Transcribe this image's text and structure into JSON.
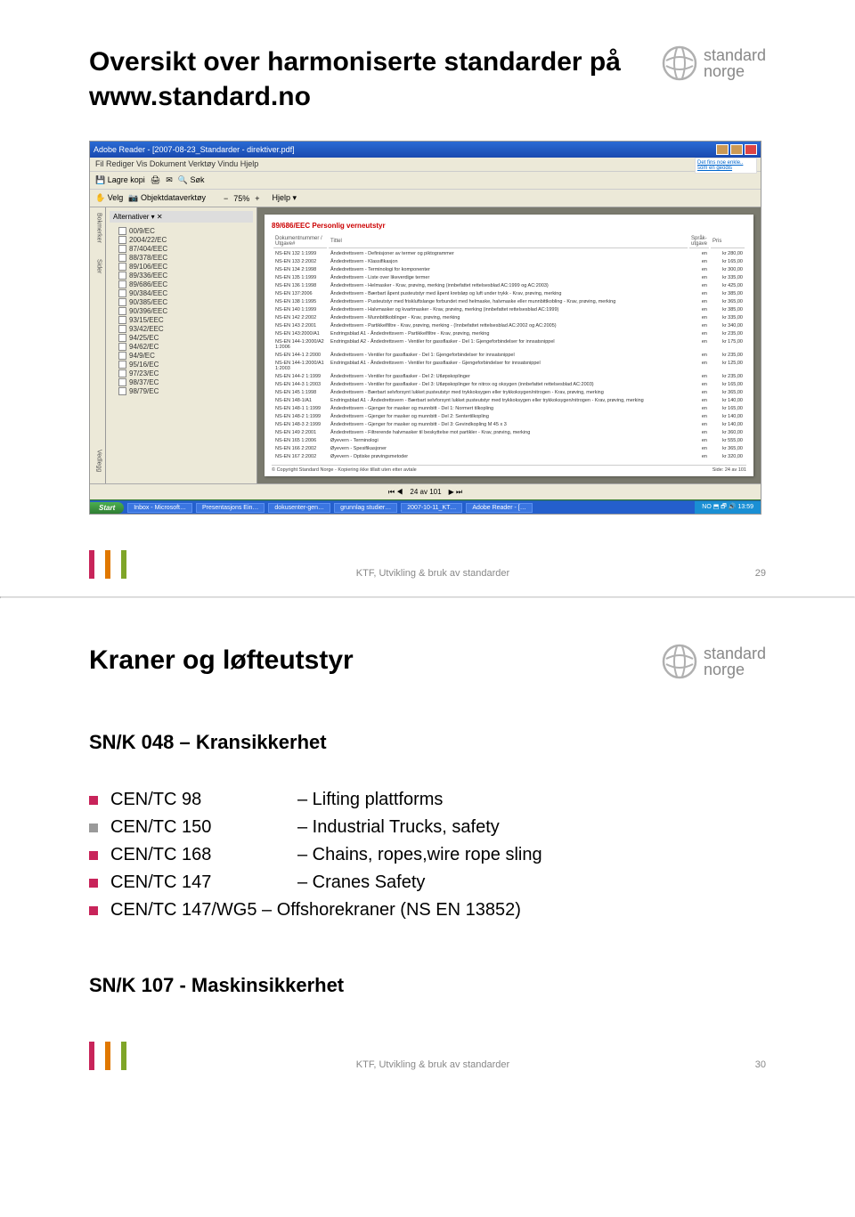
{
  "colors": {
    "bar1": "#c8245a",
    "bar2": "#e07800",
    "bar3": "#7fa528",
    "logo_gray": "#9a9a9a",
    "bullet": "#c8245a",
    "bullet2": "#9a9a9a"
  },
  "slide1": {
    "title": "Oversikt over harmoniserte standarder på www.standard.no",
    "logo": {
      "line1": "standard",
      "line2": "norge"
    },
    "footer": "KTF, Utvikling & bruk av standarder",
    "page": "29",
    "screenshot": {
      "window_title": "Adobe Reader - [2007-08-23_Standarder - direktiver.pdf]",
      "menubar": "Fil  Rediger  Vis  Dokument  Verktøy  Vindu  Hjelp",
      "zoom": "75%",
      "nav_header": "Alternativer ▾    ✕",
      "nav_items": [
        "00/9/EC",
        "2004/22/EC",
        "87/404/EEC",
        "88/378/EEC",
        "89/106/EEC",
        "89/336/EEC",
        "89/686/EEC",
        "90/384/EEC",
        "90/385/EEC",
        "90/396/EEC",
        "93/15/EEC",
        "93/42/EEC",
        "94/25/EC",
        "94/62/EC",
        "94/9/EC",
        "95/16/EC",
        "97/23/EC",
        "98/37/EC",
        "98/79/EC"
      ],
      "doc_heading": "89/686/EEC  Personlig verneutstyr",
      "table_headers": [
        "Dokumentnummer / Utgave#",
        "Tittel",
        "Språk-utgave",
        "Pris"
      ],
      "rows": [
        [
          "NS-EN 132\\n1:1999",
          "Åndedrettsvern - Definisjoner av termer og piktogrammer",
          "en",
          "kr 280,00"
        ],
        [
          "NS-EN 133\\n2:2002",
          "Åndedrettsvern - Klassifikasjon",
          "en",
          "kr 165,00"
        ],
        [
          "NS-EN 134\\n2:1998",
          "Åndedrettsvern - Terminologi for komponenter",
          "en",
          "kr 300,00"
        ],
        [
          "NS-EN 135\\n1:1999",
          "Åndedrettsvern - Liste over likeverdige termer",
          "en",
          "kr 335,00"
        ],
        [
          "NS-EN 136\\n1:1998",
          "Åndedrettsvern - Helmasker - Krav, prøving, merking (innbefattet rettelsesblad AC:1999 og AC:2003)",
          "en",
          "kr 425,00"
        ],
        [
          "NS-EN 137:2006",
          "Åndedrettsvern - Bærbart åpent pusteutstyr med åpent kretsløp og luft under trykk - Krav, prøving, merking",
          "en",
          "kr 385,00"
        ],
        [
          "NS-EN 138\\n1:1995",
          "Åndedrettsvern - Pusteutstyr med friskluftslange forbundet med helmaske, halvmaske eller munnbittkobling - Krav, prøving, merking",
          "en",
          "kr 365,00"
        ],
        [
          "NS-EN 140\\n1:1999",
          "Åndedrettsvern - Halvmasker og kvartmasker - Krav, prøving, merking (innbefattet rettelsesblad AC:1999)",
          "en",
          "kr 385,00"
        ],
        [
          "NS-EN 142\\n2:2002",
          "Åndedrettsvern - Munnbittkoblinger - Krav, prøving, merking",
          "en",
          "kr 335,00"
        ],
        [
          "NS-EN 143\\n2:2001",
          "Åndedrettsvern - Partikkelfiltre - Krav, prøving, merking - (Innbefattet rettelsesblad AC:2002 og AC:2005)",
          "en",
          "kr 340,00"
        ],
        [
          "NS-EN 143:2000/A1",
          "Endringsblad A1 - Åndedrettsvern - Partikkelfiltre - Krav, prøving, merking",
          "en",
          "kr 235,00"
        ],
        [
          "NS-EN 144-1:2000/A2\\n1:2006",
          "Endringsblad A2 - Åndedrettsvern - Ventiler for gassflasker - Del 1: Gjengeforbindelser for innsatsnippel",
          "en",
          "kr 175,00"
        ],
        [
          "NS-EN 144-1\\n2:2000",
          "Åndedrettsvern - Ventiler for gassflasker - Del 1: Gjengeforbindelser for innsatsnippel",
          "en",
          "kr 235,00"
        ],
        [
          "NS-EN 144-1:2000/A1\\n1:2003",
          "Endringsblad A1 - Åndedrettsvern - Ventiler for gassflasker - Gjengeforbindelser for innsatsnippel",
          "en",
          "kr 125,00"
        ],
        [
          "NS-EN 144-2\\n1:1999",
          "Åndedrettsvern - Ventiler for gassflasker - Del 2: Utløpskoplinger",
          "en",
          "kr 235,00"
        ],
        [
          "NS-EN 144-3\\n1:2003",
          "Åndedrettsvern - Ventiler for gassflasker - Del 3: Utløpskoplinger for nitrox og oksygen (innbefattet rettelsesblad AC:2003)",
          "en",
          "kr 165,00"
        ],
        [
          "NS-EN 145\\n1:1998",
          "Åndedrettsvern - Bærbart selvforsynt lukket pusteutstyr med trykkoksygen eller trykkoksygen/nitrogen - Krav, prøving, merking",
          "en",
          "kr 365,00"
        ],
        [
          "NS-EN 148-1/A1",
          "Endringsblad A1 - Åndedrettsvern - Bærbart selvforsynt lukket pusteutstyr med trykkoksygen eller trykkoksygen/nitrogen - Krav, prøving, merking",
          "en",
          "kr 140,00"
        ],
        [
          "NS-EN 148-1\\n1:1999",
          "Åndedrettsvern - Gjenger for masker og munnbitt - Del 1: Normert tilkopling",
          "en",
          "kr 165,00"
        ],
        [
          "NS-EN 148-2\\n1:1999",
          "Åndedrettsvern - Gjenger for masker og munnbitt - Del 2: Sentertilkopling",
          "en",
          "kr 140,00"
        ],
        [
          "NS-EN 148-3\\n2:1999",
          "Åndedrettsvern - Gjenger for masker og munnbitt - Del 3: Gevindkopling M 45 x 3",
          "en",
          "kr 140,00"
        ],
        [
          "NS-EN 149\\n2:2001",
          "Åndedrettsvern - Filtrerende halvmasker til beskyttelse mot partikler - Krav, prøving, merking",
          "en",
          "kr 360,00"
        ],
        [
          "NS-EN 165\\n1:2006",
          "Øyevern - Terminologi",
          "en",
          "kr 555,00"
        ],
        [
          "NS-EN 166\\n2:2002",
          "Øyevern - Spesifikasjoner",
          "en",
          "kr 365,00"
        ],
        [
          "NS-EN 167\\n2:2002",
          "Øyevern - Optiske prøvingsmetoder",
          "en",
          "kr 320,00"
        ]
      ],
      "doc_footer_left": "© Copyright Standard Norge - Kopiering ikke tillatt uten etter avtale",
      "doc_footer_right": "Side: 24 av 101",
      "status_page": "24 av 101",
      "ad_link": "Det fins noe enkle.. som en geodis",
      "taskbar": {
        "start": "Start",
        "tasks": [
          "Inbox - Microsoft…",
          "Presentasjons Ein…",
          "dokusenter-gen…",
          "grunnlag studier…",
          "2007-10-11_KT…",
          "Adobe Reader - […"
        ],
        "tray": "NO  ⬒ 🗗 🔊  13:59"
      }
    }
  },
  "slide2": {
    "title": "Kraner og løfteutstyr",
    "logo": {
      "line1": "standard",
      "line2": "norge"
    },
    "subtitle": "SN/K 048 – Kransikkerhet",
    "bullets": [
      {
        "code": "CEN/TC 98",
        "desc": "– Lifting plattforms",
        "color": "#c8245a"
      },
      {
        "code": "CEN/TC 150",
        "desc": "– Industrial Trucks, safety",
        "color": "#9a9a9a"
      },
      {
        "code": "CEN/TC 168",
        "desc": "– Chains, ropes,wire rope sling",
        "color": "#c8245a"
      },
      {
        "code": "CEN/TC 147",
        "desc": "– Cranes Safety",
        "color": "#c8245a"
      },
      {
        "code": "CEN/TC 147/WG5 – Offshorekraner (NS EN 13852)",
        "desc": "",
        "color": "#c8245a"
      }
    ],
    "subtitle2": "SN/K 107 - Maskinsikkerhet",
    "footer": "KTF, Utvikling & bruk av standarder",
    "page": "30"
  }
}
